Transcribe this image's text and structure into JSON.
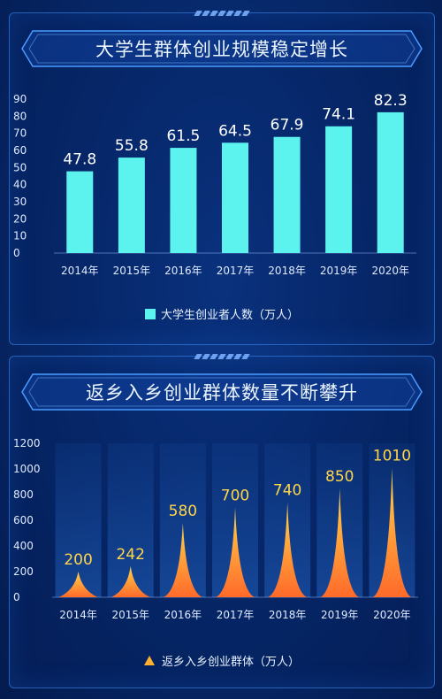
{
  "colors": {
    "bar": "#5cf2ee",
    "peak_top": "#ffd54a",
    "peak_bottom": "#ff6a2a",
    "label_top": "#ffffff",
    "label_bottom": "#ffd54a",
    "axis_text": "#dfeaff"
  },
  "chart_data": [
    {
      "type": "bar",
      "title": "大学生群体创业规模稳定增长",
      "categories": [
        "2014年",
        "2015年",
        "2016年",
        "2017年",
        "2018年",
        "2019年",
        "2020年"
      ],
      "series": [
        {
          "name": "大学生创业者人数（万人）",
          "values": [
            47.8,
            55.8,
            61.5,
            64.5,
            67.9,
            74.1,
            82.3
          ]
        }
      ],
      "data_labels": [
        "47.8",
        "55.8",
        "61.5",
        "64.5",
        "67.9",
        "74.1",
        "82.3"
      ],
      "yticks": [
        "0",
        "10",
        "20",
        "30",
        "40",
        "50",
        "60",
        "70",
        "80",
        "90"
      ],
      "ylim": [
        0,
        90
      ],
      "legend_position": "bottom"
    },
    {
      "type": "bar",
      "title": "返乡入乡创业群体数量不断攀升",
      "categories": [
        "2014年",
        "2015年",
        "2016年",
        "2017年",
        "2018年",
        "2019年",
        "2020年"
      ],
      "series": [
        {
          "name": "返乡入乡创业群体（万人）",
          "values": [
            200,
            242,
            580,
            700,
            740,
            850,
            1010
          ]
        }
      ],
      "data_labels": [
        "200",
        "242",
        "580",
        "700",
        "740",
        "850",
        "1010"
      ],
      "yticks": [
        "0",
        "200",
        "400",
        "600",
        "800",
        "1000",
        "1200"
      ],
      "ylim": [
        0,
        1200
      ],
      "legend_position": "bottom"
    }
  ]
}
